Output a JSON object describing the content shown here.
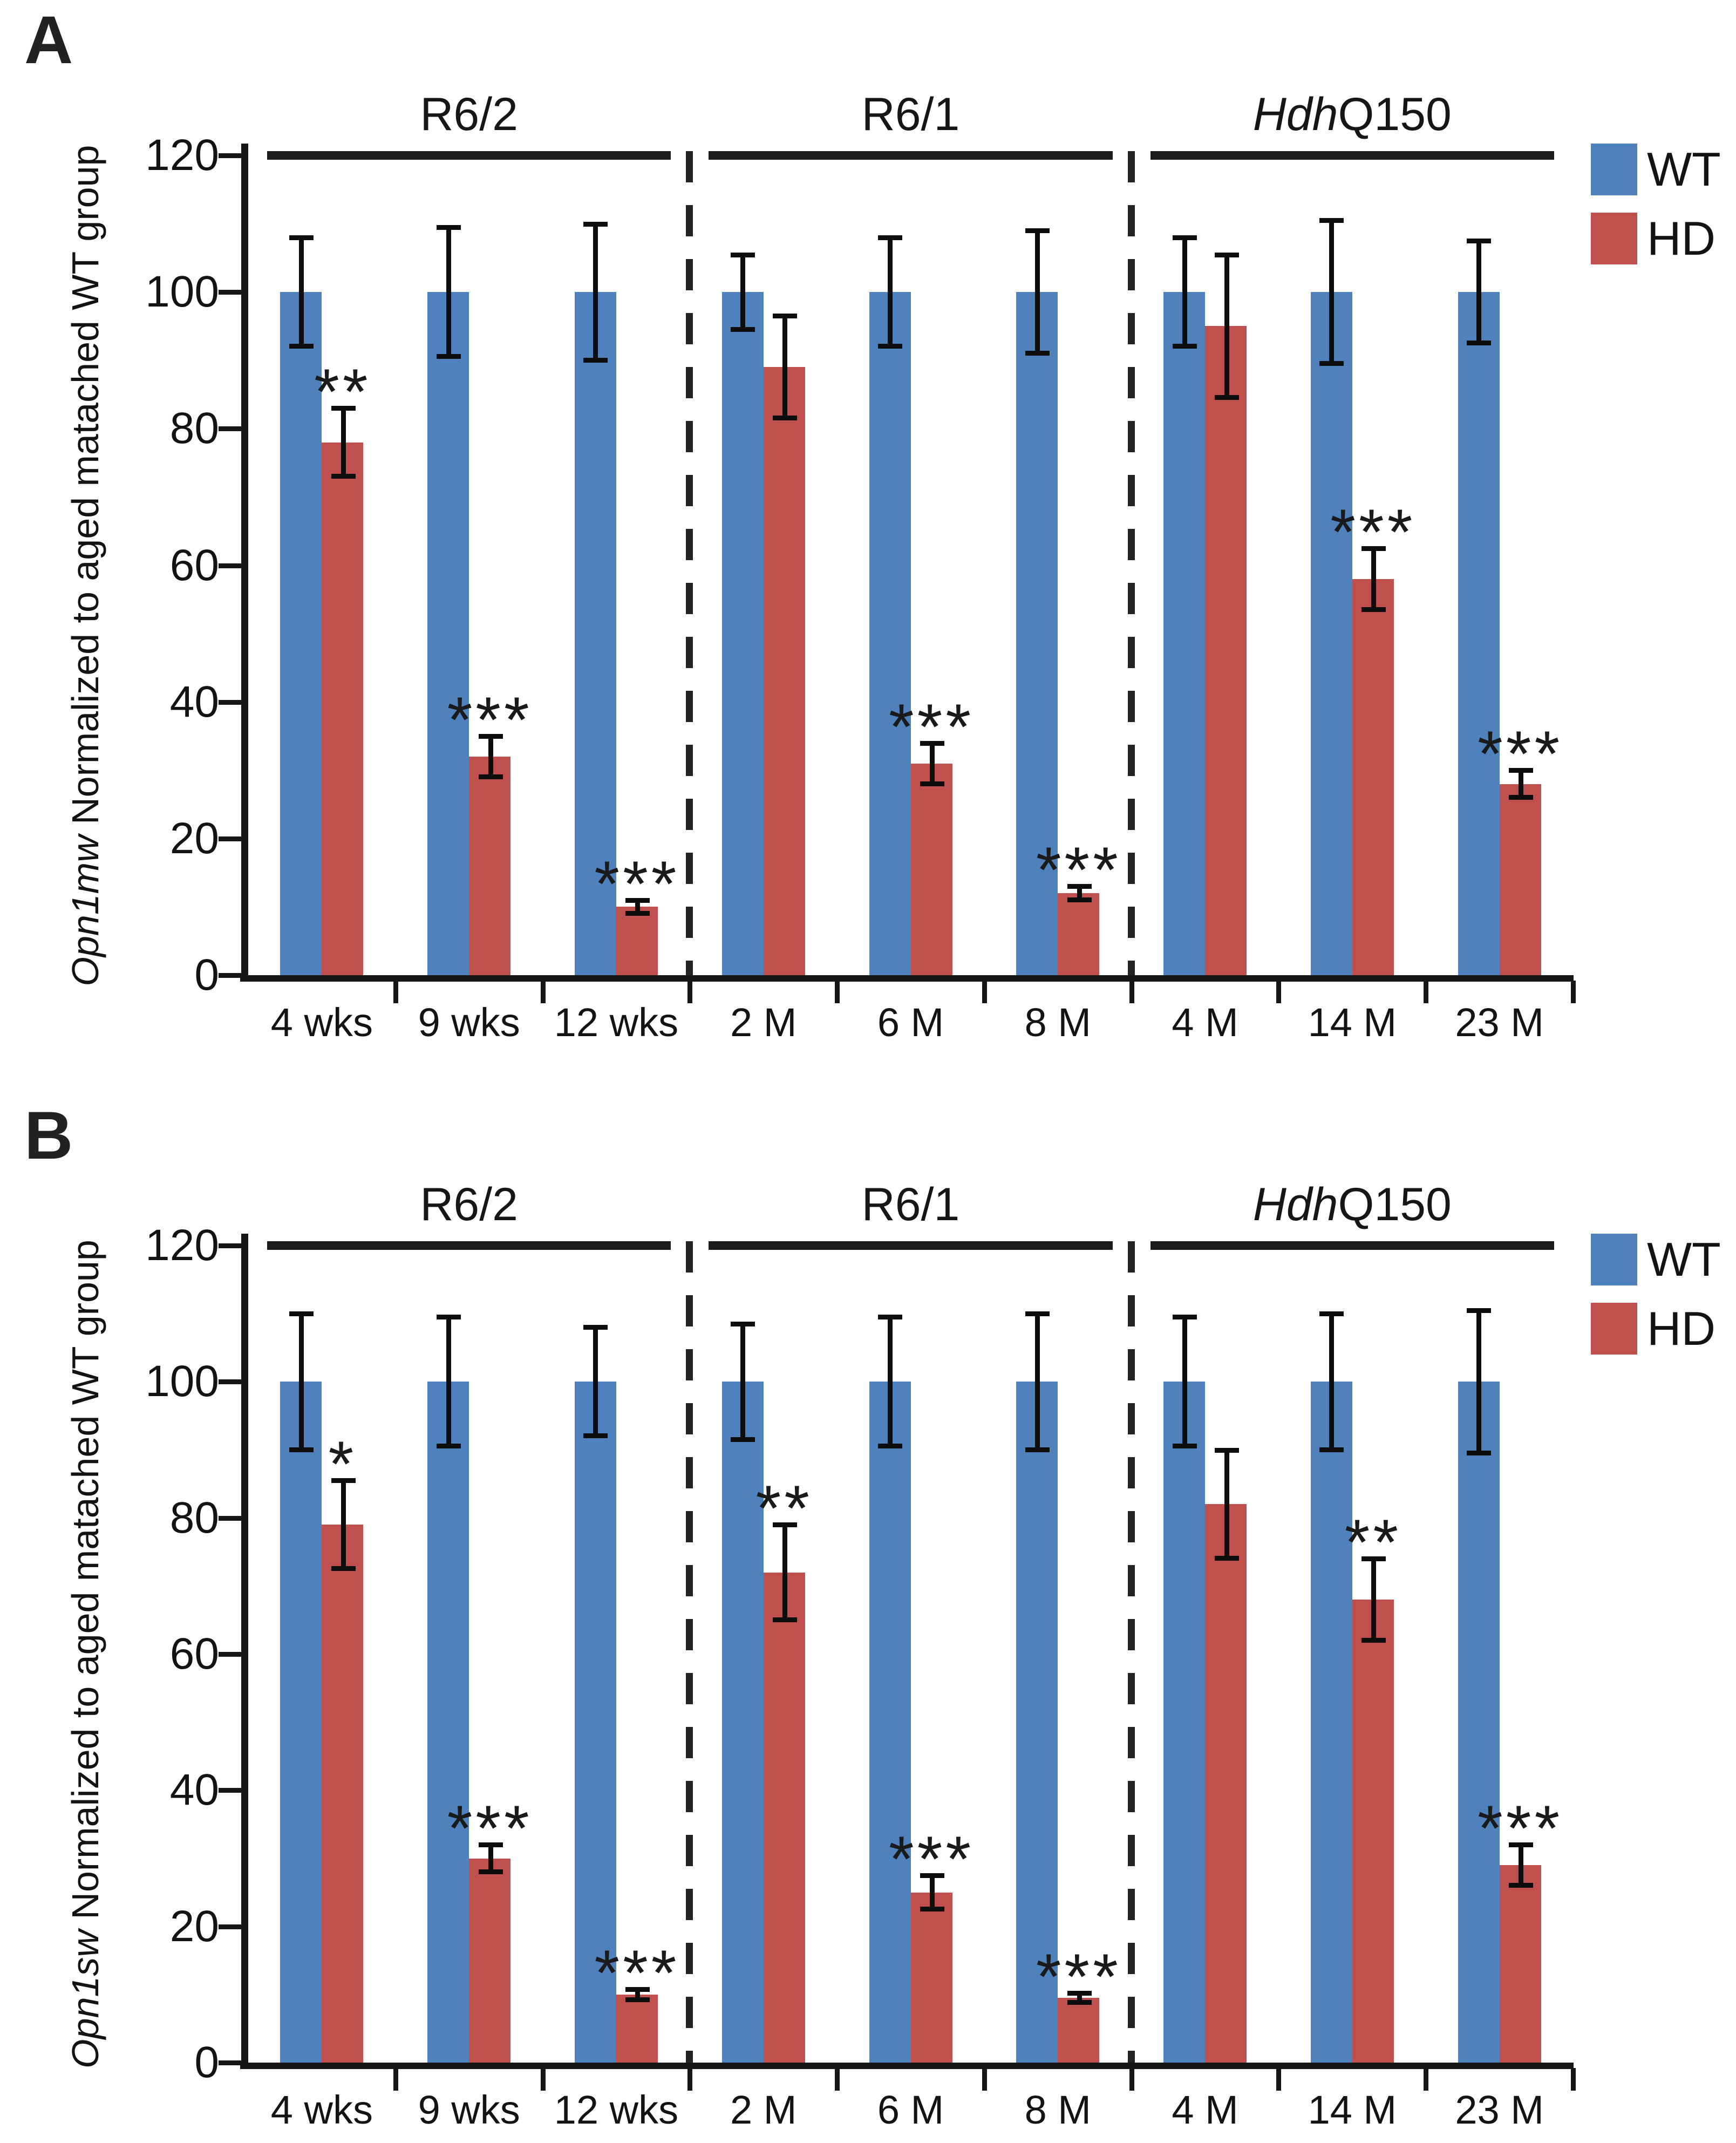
{
  "figure": {
    "background": "#ffffff",
    "axis_color": "#161616",
    "legend": {
      "wt_label": "WT",
      "hd_label": "HD"
    }
  },
  "chart_data": [
    {
      "type": "bar",
      "panel_label": "A",
      "ylabel_italic": "Opn1mw",
      "ylabel_rest": " Normalized to aged matached WT group",
      "ylim": [
        0,
        120
      ],
      "yticks": [
        0,
        20,
        40,
        60,
        80,
        100,
        120
      ],
      "grid": false,
      "legend_position": "top-right",
      "groups": [
        {
          "italic_part": "",
          "plain_part": "R6/2"
        },
        {
          "italic_part": "",
          "plain_part": "R6/1"
        },
        {
          "italic_part": "Hdh",
          "plain_part": "Q150"
        }
      ],
      "categories": [
        "4 wks",
        "9 wks",
        "12 wks",
        "2 M",
        "6 M",
        "8 M",
        "4 M",
        "14 M",
        "23 M"
      ],
      "group_of_category": [
        0,
        0,
        0,
        1,
        1,
        1,
        2,
        2,
        2
      ],
      "series": [
        {
          "name": "WT",
          "color": "#4F81BD",
          "values": [
            100,
            100,
            100,
            100,
            100,
            100,
            100,
            100,
            100
          ],
          "errors": [
            8,
            9.5,
            10,
            5.5,
            8,
            9,
            8,
            10.5,
            7.5
          ]
        },
        {
          "name": "HD",
          "color": "#C0504D",
          "values": [
            78,
            32,
            10,
            89,
            31,
            12,
            95,
            58,
            28
          ],
          "errors": [
            5,
            3,
            1,
            7.5,
            3,
            1,
            10.5,
            4.5,
            2
          ]
        }
      ],
      "significance": [
        "**",
        "***",
        "***",
        "",
        "***",
        "***",
        "",
        "***",
        "***"
      ]
    },
    {
      "type": "bar",
      "panel_label": "B",
      "ylabel_italic": "Opn1sw",
      "ylabel_rest": " Normalized to aged matached WT group",
      "ylim": [
        0,
        120
      ],
      "yticks": [
        0,
        20,
        40,
        60,
        80,
        100,
        120
      ],
      "grid": false,
      "legend_position": "top-right",
      "groups": [
        {
          "italic_part": "",
          "plain_part": "R6/2"
        },
        {
          "italic_part": "",
          "plain_part": "R6/1"
        },
        {
          "italic_part": "Hdh",
          "plain_part": "Q150"
        }
      ],
      "categories": [
        "4 wks",
        "9 wks",
        "12 wks",
        "2 M",
        "6 M",
        "8 M",
        "4 M",
        "14 M",
        "23 M"
      ],
      "group_of_category": [
        0,
        0,
        0,
        1,
        1,
        1,
        2,
        2,
        2
      ],
      "series": [
        {
          "name": "WT",
          "color": "#4F81BD",
          "values": [
            100,
            100,
            100,
            100,
            100,
            100,
            100,
            100,
            100
          ],
          "errors": [
            10,
            9.5,
            8,
            8.5,
            9.5,
            10,
            9.5,
            10,
            10.5
          ]
        },
        {
          "name": "HD",
          "color": "#C0504D",
          "values": [
            79,
            30,
            10,
            72,
            25,
            9.5,
            82,
            68,
            29
          ],
          "errors": [
            6.5,
            2,
            0.8,
            7,
            2.5,
            0.7,
            8,
            6,
            3
          ]
        }
      ],
      "significance": [
        "*",
        "***",
        "***",
        "**",
        "***",
        "***",
        "",
        "**",
        "***"
      ]
    }
  ]
}
